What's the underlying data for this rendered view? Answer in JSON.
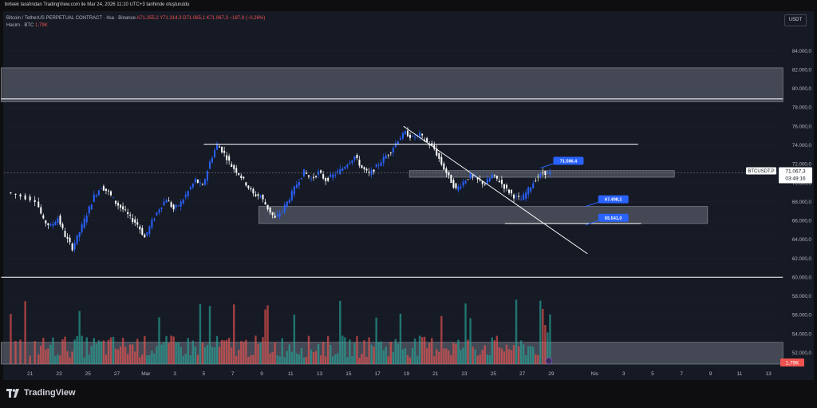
{
  "header": {
    "title": "birteek tarafından TradingView.com ile Mar 24, 2026 11:10 UTC+3 tarihinde oluşturuldu",
    "symbol_line": "Bitcoin / TetherUS PERPETUAL CONTRACT · 4sa · Binance",
    "ohlc": "A71.255,2  Y71.314,3  D71.065,1  K71.067,3  −187,9 (−0,26%)",
    "volume_label": "Hacim · BTC",
    "volume_value": "1,79K",
    "currency": "USDT"
  },
  "footer": {
    "brand": "TradingView"
  },
  "chart_data": {
    "type": "candlestick",
    "title": "Bitcoin / TetherUS PERPETUAL CONTRACT · 4sa · Binance",
    "ylim": [
      50800,
      86000
    ],
    "price_ticks": [
      "84.000,0",
      "82.000,0",
      "80.000,0",
      "78.000,0",
      "76.000,0",
      "74.000,0",
      "72.000,0",
      "70.000,0",
      "68.000,0",
      "66.000,0",
      "64.000,0",
      "62.000,0",
      "60.000,0",
      "58.000,0",
      "56.000,0",
      "54.000,0",
      "52.000,0"
    ],
    "price_tick_values": [
      84000,
      82000,
      80000,
      78000,
      76000,
      74000,
      72000,
      70000,
      68000,
      66000,
      64000,
      62000,
      60000,
      58000,
      56000,
      54000,
      52000
    ],
    "date_ticks": [
      "21",
      "23",
      "25",
      "27",
      "Mar",
      "3",
      "5",
      "7",
      "9",
      "11",
      "13",
      "15",
      "17",
      "19",
      "21",
      "23",
      "25",
      "27",
      "29",
      "Nis",
      "3",
      "5",
      "7",
      "9",
      "11",
      "13"
    ],
    "date_tick_days": [
      -8,
      -6,
      -4,
      -2,
      0,
      2,
      4,
      6,
      8,
      10,
      12,
      14,
      16,
      18,
      20,
      22,
      24,
      26,
      28,
      31,
      33,
      35,
      37,
      39,
      41,
      43
    ],
    "last_price": {
      "symbol": "BTCUSDT.P",
      "price": "71.067,3",
      "countdown": "03:49:16",
      "value": 71067.3
    },
    "volume_badge": "1,79K",
    "price_path": [
      [
        -9.5,
        69000
      ],
      [
        -8.5,
        68600
      ],
      [
        -7.5,
        68200
      ],
      [
        -7,
        66000
      ],
      [
        -6.5,
        65400
      ],
      [
        -6,
        66300
      ],
      [
        -5.5,
        64400
      ],
      [
        -5,
        63100
      ],
      [
        -4.5,
        64800
      ],
      [
        -4,
        66700
      ],
      [
        -3.5,
        68600
      ],
      [
        -3,
        69600
      ],
      [
        -2.5,
        69000
      ],
      [
        -2,
        67900
      ],
      [
        -1.5,
        67200
      ],
      [
        -1,
        66300
      ],
      [
        -0.5,
        65600
      ],
      [
        0,
        64200
      ],
      [
        0.5,
        65900
      ],
      [
        1,
        67300
      ],
      [
        1.5,
        68300
      ],
      [
        2,
        67200
      ],
      [
        2.5,
        67900
      ],
      [
        3,
        69100
      ],
      [
        3.5,
        70300
      ],
      [
        4,
        69600
      ],
      [
        4.5,
        72200
      ],
      [
        5,
        74100
      ],
      [
        5.5,
        73100
      ],
      [
        6,
        71800
      ],
      [
        6.5,
        71000
      ],
      [
        7,
        69900
      ],
      [
        7.5,
        68800
      ],
      [
        8,
        68600
      ],
      [
        8.5,
        67300
      ],
      [
        9,
        66200
      ],
      [
        9.5,
        67100
      ],
      [
        10,
        68400
      ],
      [
        10.5,
        69900
      ],
      [
        11,
        71200
      ],
      [
        11.5,
        70400
      ],
      [
        12,
        71100
      ],
      [
        12.5,
        70300
      ],
      [
        13,
        70800
      ],
      [
        13.5,
        71300
      ],
      [
        14,
        72100
      ],
      [
        14.5,
        72800
      ],
      [
        15,
        71600
      ],
      [
        15.5,
        70900
      ],
      [
        16,
        71700
      ],
      [
        16.5,
        72600
      ],
      [
        17,
        73400
      ],
      [
        17.5,
        74600
      ],
      [
        18,
        75300
      ],
      [
        18.5,
        74800
      ],
      [
        19,
        75100
      ],
      [
        19.5,
        74300
      ],
      [
        20,
        73600
      ],
      [
        20.5,
        72000
      ],
      [
        21,
        70600
      ],
      [
        21.5,
        69300
      ],
      [
        22,
        70100
      ],
      [
        22.5,
        70800
      ],
      [
        23,
        70300
      ],
      [
        23.5,
        69900
      ],
      [
        24,
        70800
      ],
      [
        24.5,
        70200
      ],
      [
        25,
        69300
      ],
      [
        25.5,
        68600
      ],
      [
        26,
        68200
      ],
      [
        26.5,
        69300
      ],
      [
        27,
        70400
      ],
      [
        27.5,
        71100
      ],
      [
        28,
        71067
      ]
    ],
    "zones": [
      {
        "from": 78600,
        "to": 82200,
        "start_day": -10,
        "end_day": 44
      },
      {
        "from": 65700,
        "to": 67500,
        "start_day": 7.8,
        "end_day": 38.8
      },
      {
        "from": 70600,
        "to": 71300,
        "start_day": 18.2,
        "end_day": 36.5
      },
      {
        "from": 50800,
        "to": 53100,
        "start_day": -10,
        "end_day": 44
      }
    ],
    "lines": [
      {
        "from": [
          4,
          74100
        ],
        "to": [
          34,
          74100
        ]
      },
      {
        "from": [
          17.8,
          76000
        ],
        "to": [
          30.5,
          62500
        ]
      },
      {
        "from": [
          24.8,
          65700
        ],
        "to": [
          34.2,
          65700
        ]
      },
      {
        "from": [
          -10,
          60000
        ],
        "to": [
          44,
          60000
        ]
      },
      {
        "from": [
          -10,
          78900
        ],
        "to": [
          44,
          78900
        ]
      }
    ],
    "callouts": [
      {
        "text": "71.586,4",
        "value": 71586.4,
        "day": 27.7
      },
      {
        "text": "67.498,1",
        "value": 67498.1,
        "day": 30.8
      },
      {
        "text": "65.541,0",
        "value": 65541.0,
        "day": 30.8
      }
    ]
  }
}
